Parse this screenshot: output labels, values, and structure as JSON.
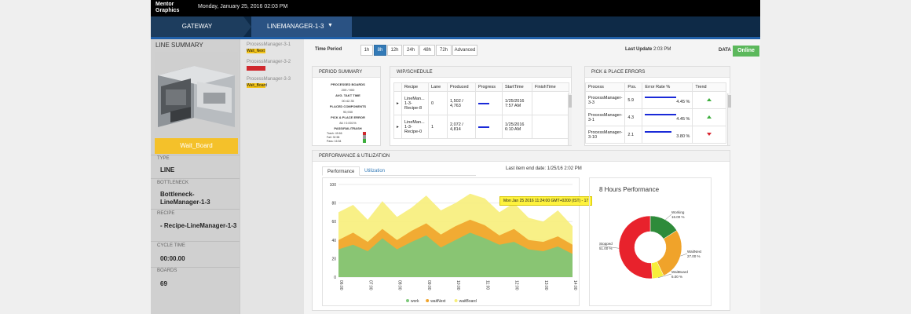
{
  "topbar": {
    "logo": "Mentor Graphics",
    "date": "Monday, January 25, 2016 02:03 PM"
  },
  "nav": {
    "gateway": "GATEWAY",
    "line": "LINEMANAGER-1-3"
  },
  "line_summary": {
    "title": "LINE SUMMARY",
    "status": "Wait_Board",
    "fields": [
      {
        "label": "TYPE",
        "value": "LINE"
      },
      {
        "label": "BOTTLENECK",
        "value": "Bottleneck-LineManager-1-3"
      },
      {
        "label": "RECIPE",
        "value": "- Recipe-LineManager-1-3"
      },
      {
        "label": "CYCLE TIME",
        "value": "00:00.00"
      },
      {
        "label": "BOARDS",
        "value": "69"
      }
    ]
  },
  "process_managers": [
    {
      "name": "ProcessManager-3-1",
      "status": "Wait_Next",
      "color": "#f5c518"
    },
    {
      "name": "ProcessManager-3-2",
      "status": "",
      "color": "#d0282d"
    },
    {
      "name": "ProcessManager-3-3",
      "status": "Wait_Board",
      "color": "#f5c518"
    }
  ],
  "time_period": {
    "label": "Time Period",
    "options": [
      "1h",
      "8h",
      "12h",
      "24h",
      "48h",
      "72h",
      "Advanced"
    ],
    "selected": "8h"
  },
  "last_update": {
    "label": "Last Update",
    "value": "2:03 PM"
  },
  "data_status": {
    "label": "DATA",
    "value": "Online"
  },
  "period_summary": {
    "title": "PERIOD SUMMARY",
    "rows": [
      {
        "text": "PROCESSED BOARDS",
        "bold": true
      },
      {
        "text": "209 / 900",
        "bold": false
      },
      {
        "text": "AVG. TAKT TIME",
        "bold": true
      },
      {
        "text": "00:42.35",
        "bold": false
      },
      {
        "text": "PLACED COMPONENTS",
        "bold": true
      },
      {
        "text": "90,930",
        "bold": false
      },
      {
        "text": "PICK & PLACE ERROR",
        "bold": true
      },
      {
        "text": "84 / 0.001%",
        "bold": false
      },
      {
        "text": "PASS/FAIL/TRASH",
        "bold": true
      }
    ],
    "pft": [
      "Trash: 49.66",
      "Fail: 32.58",
      "Pass: 16.54"
    ]
  },
  "wip": {
    "title": "WIP/SCHEDULE",
    "columns": [
      "",
      "Recipe",
      "Lane",
      "Produced",
      "Progress",
      "StartTime",
      "FinishTime"
    ],
    "rows": [
      {
        "recipe": "LineMan... 1-3-Recipe-8",
        "lane": "0",
        "produced": "1,502 / 4,763",
        "progress": 0.32,
        "start": "1/25/2016 7:57 AM",
        "finish": ""
      },
      {
        "recipe": "LineMan... 1-3-Recipe-0",
        "lane": "1",
        "produced": "2,072 / 4,814",
        "progress": 0.43,
        "start": "1/25/2016 6:10 AM",
        "finish": ""
      }
    ]
  },
  "pick_place": {
    "title": "PICK & PLACE ERRORS",
    "columns": [
      "Process",
      "Pos.",
      "Error Rate %",
      "Trend"
    ],
    "rows": [
      {
        "process": "ProcessManager-3-3",
        "pos": "5.9",
        "rate": "4.45 %",
        "rate_value": 4.45,
        "trend": "up"
      },
      {
        "process": "ProcessManager-3-1",
        "pos": "4.3",
        "rate": "4.45 %",
        "rate_value": 4.45,
        "trend": "up"
      },
      {
        "process": "ProcessManager-3-10",
        "pos": "2.1",
        "rate": "3.80 %",
        "rate_value": 3.8,
        "trend": "down"
      }
    ]
  },
  "performance": {
    "title": "PERFORMANCE & UTILIZATION",
    "tabs": [
      "Performance",
      "Utilization"
    ],
    "active_tab": "Performance",
    "last_item": "Last item end date: 1/25/16 2:02 PM",
    "tooltip": "Mon Jan 25 2016 11:24:00 GMT+0200 (IST) - 17"
  },
  "chart_data": [
    {
      "type": "area",
      "title": "",
      "xlabel": "",
      "ylabel": "",
      "ylim": [
        0,
        100
      ],
      "yticks": [
        0,
        20,
        40,
        60,
        80,
        100
      ],
      "xtick_labels": [
        "06:00",
        "07:00",
        "08:00",
        "09:00",
        "10:00",
        "11:00",
        "12:00",
        "13:00",
        "14:00"
      ],
      "x": [
        "06:00",
        "06:30",
        "07:00",
        "07:30",
        "08:00",
        "08:30",
        "09:00",
        "09:30",
        "10:00",
        "10:30",
        "11:00",
        "11:30",
        "12:00",
        "12:30",
        "13:00",
        "13:30",
        "14:00"
      ],
      "series": [
        {
          "name": "work",
          "color": "#7dc87a",
          "values": [
            30,
            35,
            28,
            42,
            30,
            38,
            45,
            32,
            40,
            48,
            42,
            35,
            38,
            30,
            28,
            33,
            25
          ]
        },
        {
          "name": "waitNext",
          "color": "#f0a32a",
          "values": [
            40,
            48,
            38,
            52,
            40,
            50,
            58,
            46,
            55,
            62,
            56,
            45,
            52,
            40,
            38,
            44,
            35
          ]
        },
        {
          "name": "waitBoard",
          "color": "#f7ee7a",
          "values": [
            70,
            78,
            62,
            82,
            65,
            75,
            88,
            72,
            80,
            90,
            85,
            70,
            80,
            64,
            60,
            72,
            55
          ]
        }
      ],
      "legend_position": "bottom",
      "grid": true
    },
    {
      "type": "pie",
      "title": "8 Hours Performance",
      "slices": [
        {
          "label": "Working",
          "value": 16.0,
          "text": "16.00 %",
          "color": "#2e8b3a"
        },
        {
          "label": "WaitNext",
          "value": 27.0,
          "text": "27.00 %",
          "color": "#f0a32a"
        },
        {
          "label": "WaitBoard",
          "value": 6.0,
          "text": "6.00 %",
          "color": "#f7ee3a"
        },
        {
          "label": "Stopped",
          "value": 51.0,
          "text": "51.00 %",
          "color": "#e8222c"
        }
      ]
    }
  ]
}
